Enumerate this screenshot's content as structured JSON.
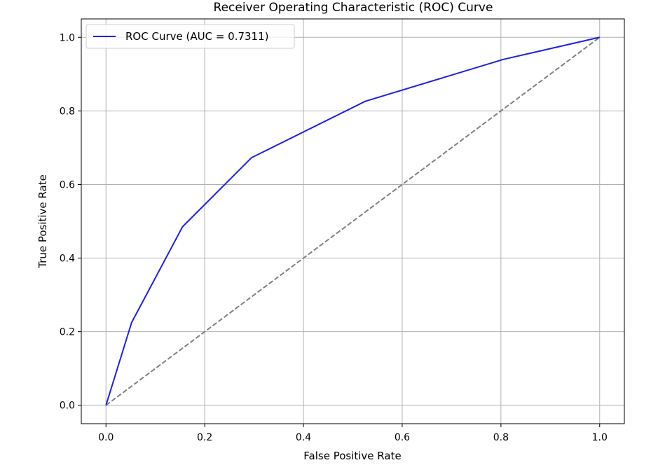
{
  "chart_data": {
    "type": "line",
    "title": "Receiver Operating Characteristic (ROC) Curve",
    "xlabel": "False Positive Rate",
    "ylabel": "True Positive Rate",
    "xlim": [
      -0.05,
      1.05
    ],
    "ylim": [
      -0.05,
      1.05
    ],
    "xticks": [
      0.0,
      0.2,
      0.4,
      0.6,
      0.8,
      1.0
    ],
    "yticks": [
      0.0,
      0.2,
      0.4,
      0.6,
      0.8,
      1.0
    ],
    "xtick_labels": [
      "0.0",
      "0.2",
      "0.4",
      "0.6",
      "0.8",
      "1.0"
    ],
    "ytick_labels": [
      "0.0",
      "0.2",
      "0.4",
      "0.6",
      "0.8",
      "1.0"
    ],
    "grid": true,
    "legend": {
      "placement": "upper-left",
      "entries": [
        "ROC Curve (AUC = 0.7311)"
      ]
    },
    "series": [
      {
        "name": "ROC Curve (AUC = 0.7311)",
        "color": "#1f1fe8",
        "style": "solid",
        "x": [
          0.0,
          0.052,
          0.155,
          0.295,
          0.525,
          0.805,
          1.0
        ],
        "y": [
          0.0,
          0.225,
          0.485,
          0.673,
          0.826,
          0.94,
          1.0
        ]
      },
      {
        "color": "#808080",
        "style": "dashed",
        "x": [
          0.0,
          1.0
        ],
        "y": [
          0.0,
          1.0
        ]
      }
    ]
  }
}
